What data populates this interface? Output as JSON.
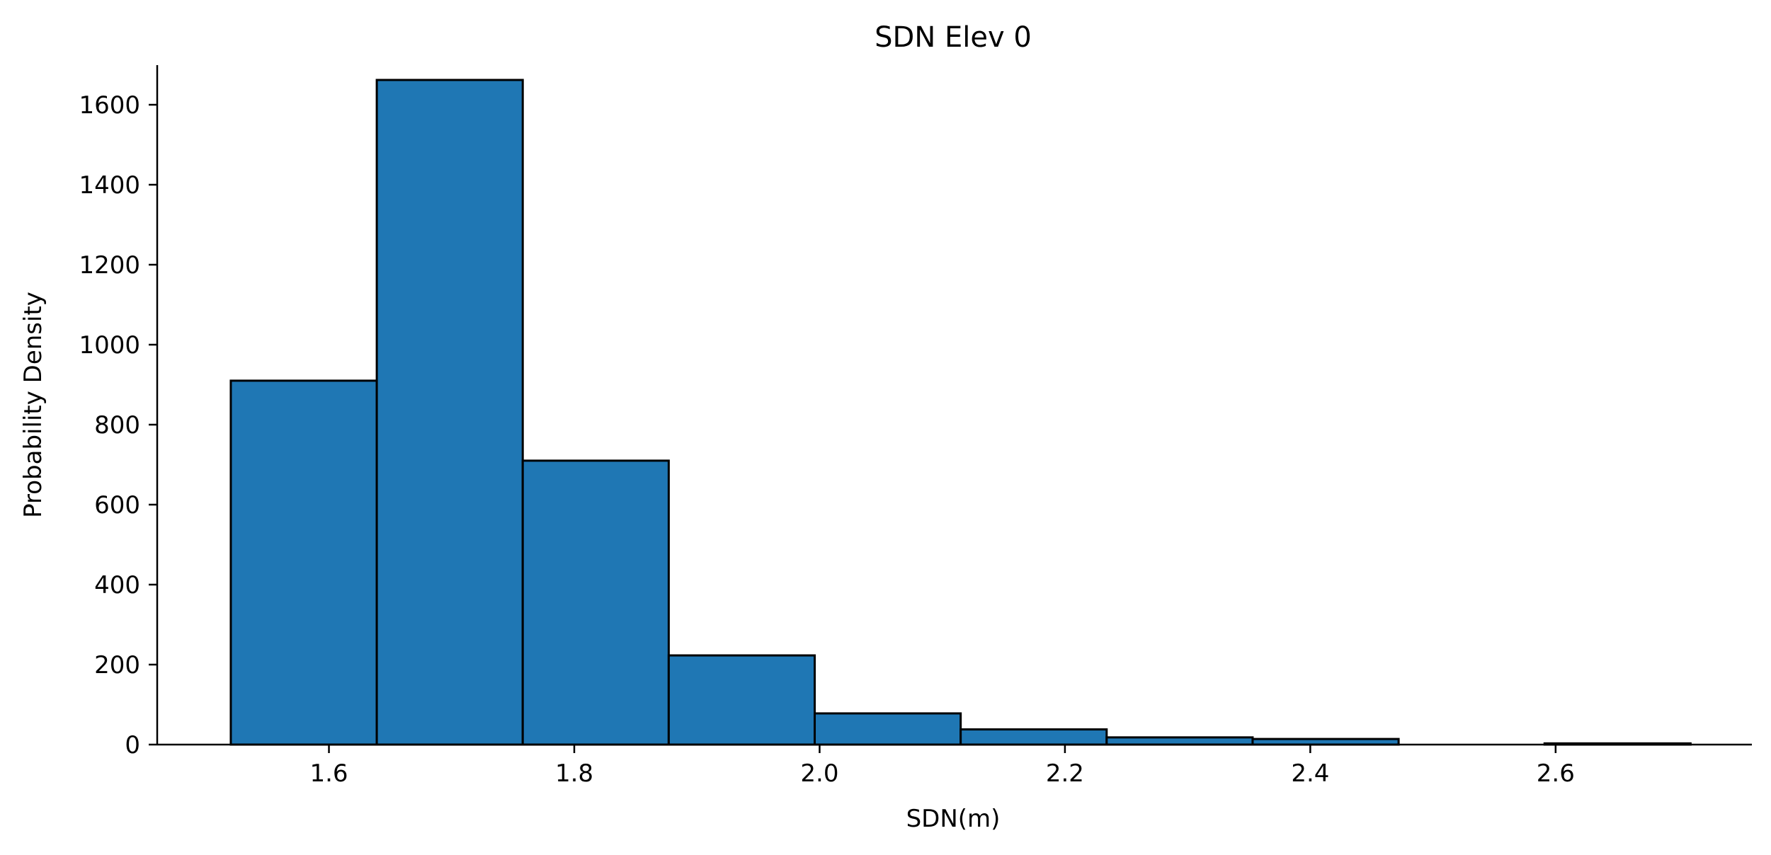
{
  "chart_data": {
    "type": "bar",
    "title": "SDN Elev 0",
    "xlabel": "SDN(m)",
    "ylabel": "Probability Density",
    "xlim": [
      1.46,
      2.76
    ],
    "ylim": [
      0,
      1750
    ],
    "bin_edges": [
      1.52,
      1.639,
      1.758,
      1.877,
      1.996,
      2.115,
      2.234,
      2.353,
      2.472,
      2.591,
      2.71
    ],
    "values": [
      910,
      1662,
      710,
      223,
      78,
      38,
      18,
      14,
      0,
      3
    ],
    "x_ticks": [
      1.6,
      1.8,
      2.0,
      2.2,
      2.4,
      2.6
    ],
    "x_tick_labels": [
      "1.6",
      "1.8",
      "2.0",
      "2.2",
      "2.4",
      "2.6"
    ],
    "y_ticks": [
      0,
      200,
      400,
      600,
      800,
      1000,
      1200,
      1400,
      1600
    ],
    "y_tick_labels": [
      "0",
      "200",
      "400",
      "600",
      "800",
      "1000",
      "1200",
      "1400",
      "1600"
    ],
    "bar_color": "#1f77b4",
    "edge_color": "#000000",
    "grid": false,
    "legend": "none"
  }
}
